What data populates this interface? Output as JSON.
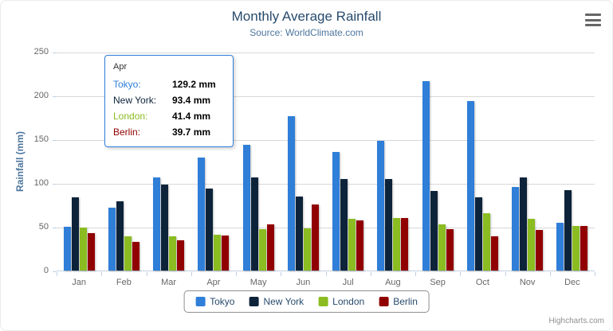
{
  "header": {
    "title": "Monthly Average Rainfall",
    "subtitle": "Source: WorldClimate.com"
  },
  "y_axis": {
    "title": "Rainfall (mm)"
  },
  "credits": {
    "label": "Highcharts.com"
  },
  "tooltip": {
    "header": "Apr",
    "border_color": "#2f7ed8",
    "rows": [
      {
        "name": "Tokyo:",
        "value": "129.2 mm",
        "color": "#2f7ed8"
      },
      {
        "name": "New York:",
        "value": "93.4 mm",
        "color": "#0d233a"
      },
      {
        "name": "London:",
        "value": "41.4 mm",
        "color": "#8bbc21"
      },
      {
        "name": "Berlin:",
        "value": "39.7 mm",
        "color": "#910000"
      }
    ]
  },
  "chart_data": {
    "type": "bar",
    "title": "Monthly Average Rainfall",
    "subtitle": "Source: WorldClimate.com",
    "xlabel": "",
    "ylabel": "Rainfall (mm)",
    "ylim": [
      0,
      250
    ],
    "y_ticks": [
      0,
      50,
      100,
      150,
      200,
      250
    ],
    "grid": true,
    "legend_position": "bottom",
    "categories": [
      "Jan",
      "Feb",
      "Mar",
      "Apr",
      "May",
      "Jun",
      "Jul",
      "Aug",
      "Sep",
      "Oct",
      "Nov",
      "Dec"
    ],
    "series": [
      {
        "name": "Tokyo",
        "color": "#2f7ed8",
        "values": [
          49.9,
          71.5,
          106.4,
          129.2,
          144.0,
          176.0,
          135.6,
          148.5,
          216.4,
          194.1,
          95.6,
          54.4
        ]
      },
      {
        "name": "New York",
        "color": "#0d233a",
        "values": [
          83.6,
          78.8,
          98.5,
          93.4,
          106.0,
          84.5,
          105.0,
          104.3,
          91.2,
          83.5,
          106.6,
          92.3
        ]
      },
      {
        "name": "London",
        "color": "#8bbc21",
        "values": [
          48.9,
          38.8,
          39.3,
          41.4,
          47.0,
          48.3,
          59.0,
          59.6,
          52.4,
          65.2,
          59.3,
          51.2
        ]
      },
      {
        "name": "Berlin",
        "color": "#910000",
        "values": [
          42.4,
          33.2,
          34.5,
          39.7,
          52.6,
          75.5,
          57.4,
          60.4,
          47.6,
          39.1,
          46.8,
          51.1
        ]
      }
    ]
  }
}
